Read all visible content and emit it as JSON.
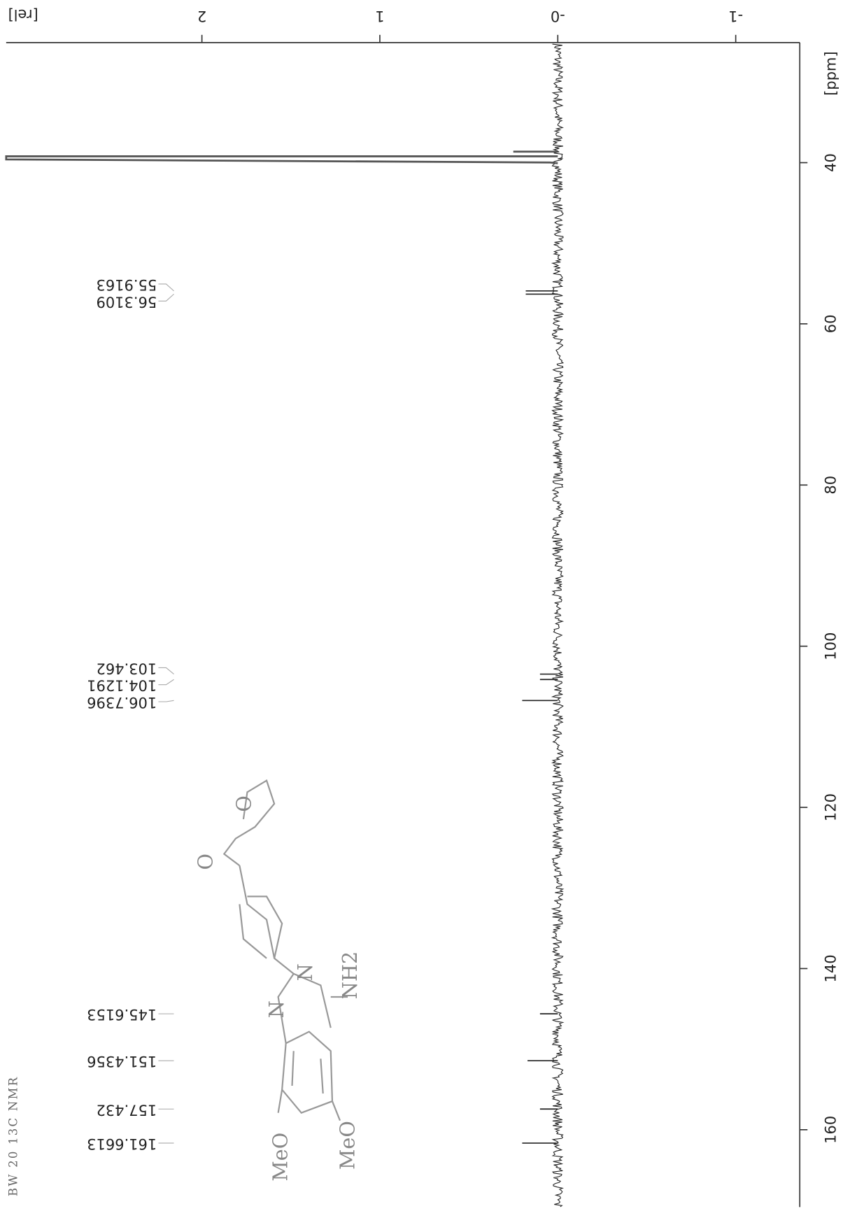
{
  "chart_data": {
    "type": "line",
    "title": "BW 20 13C NMR",
    "xlabel": "[ppm]",
    "ylabel": "[rel]",
    "xlim": [
      25.1,
      169.6
    ],
    "ylim": [
      -1.36,
      3.1
    ],
    "xticks": [
      40,
      60,
      80,
      100,
      120,
      140,
      160
    ],
    "yticks": [
      {
        "value": -1,
        "label": "-1"
      },
      {
        "value": 0,
        "label": "-0"
      },
      1,
      2
    ],
    "color": "#222222",
    "peaks": {
      "x": [
        55.9163,
        56.3109,
        103.462,
        104.1291,
        106.7396,
        145.6153,
        151.4356,
        157.432,
        161.6613
      ],
      "values": [
        0.18,
        0.18,
        0.1,
        0.1,
        0.2,
        0.1,
        0.17,
        0.1,
        0.2
      ]
    },
    "solvent_peak": {
      "x": 39.5,
      "value": 3.1
    },
    "structure_labels": [
      "MeO",
      "MeO",
      "NH2",
      "N",
      "N",
      "O",
      "O"
    ]
  }
}
